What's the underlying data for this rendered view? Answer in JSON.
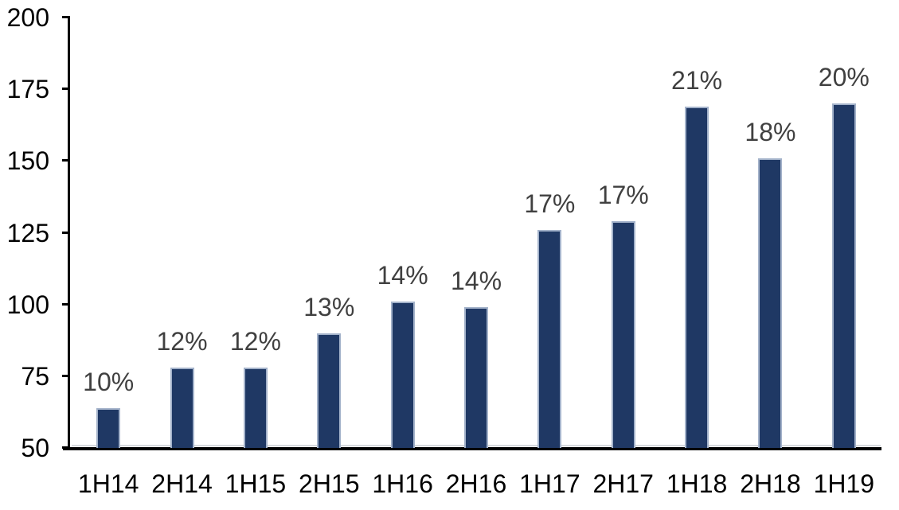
{
  "chart_data": {
    "type": "bar",
    "title": "",
    "xlabel": "",
    "ylabel": "",
    "categories": [
      "1H14",
      "2H14",
      "1H15",
      "2H15",
      "1H16",
      "2H16",
      "1H17",
      "2H17",
      "1H18",
      "2H18",
      "1H19"
    ],
    "values": [
      64,
      78,
      78,
      90,
      101,
      99,
      126,
      129,
      169,
      151,
      170
    ],
    "data_labels": [
      "10%",
      "12%",
      "12%",
      "13%",
      "14%",
      "14%",
      "17%",
      "17%",
      "21%",
      "18%",
      "20%"
    ],
    "ylim": [
      50,
      200
    ],
    "y_ticks": [
      200,
      175,
      150,
      125,
      100,
      75,
      50
    ],
    "grid": false,
    "legend_position": "none",
    "colors": {
      "bar_fill": "#1F3864",
      "bar_border": "#A3B2CA",
      "data_label": "#404040",
      "axis_line": "#000000",
      "tick_label": "#000000",
      "background": "#FFFFFF"
    }
  }
}
